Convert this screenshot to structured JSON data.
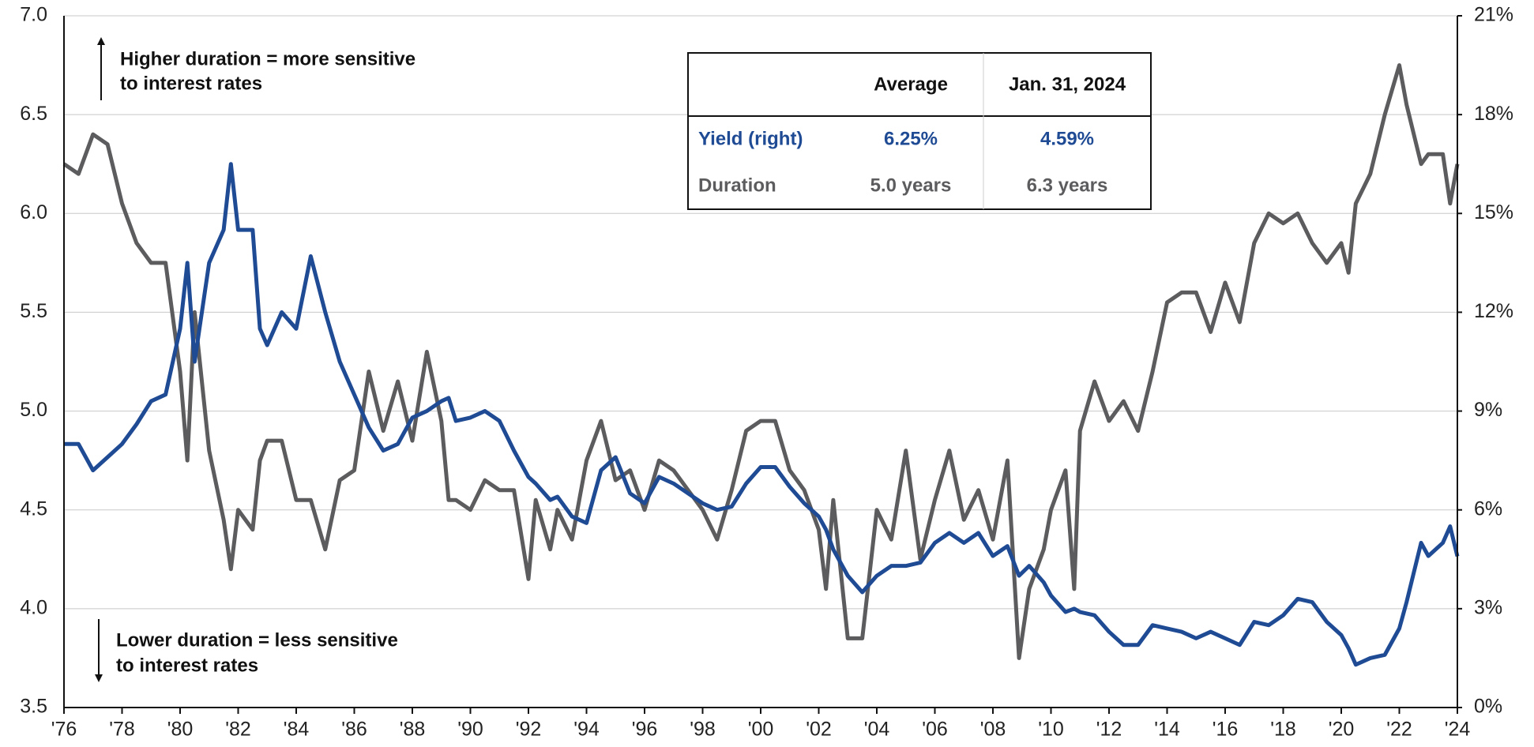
{
  "chart_data": {
    "type": "line",
    "x": [
      1976,
      1976.5,
      1977,
      1977.5,
      1978,
      1978.5,
      1979,
      1979.5,
      1980,
      1980.25,
      1980.5,
      1981,
      1981.5,
      1981.75,
      1982,
      1982.5,
      1982.75,
      1983,
      1983.5,
      1984,
      1984.5,
      1985,
      1985.5,
      1986,
      1986.5,
      1987,
      1987.5,
      1988,
      1988.5,
      1989,
      1989.25,
      1989.5,
      1990,
      1990.5,
      1991,
      1991.5,
      1992,
      1992.25,
      1992.75,
      1993,
      1993.5,
      1994,
      1994.5,
      1995,
      1995.5,
      1996,
      1996.5,
      1997,
      1997.5,
      1998,
      1998.5,
      1999,
      1999.5,
      2000,
      2000.5,
      2001,
      2001.5,
      2002,
      2002.25,
      2002.5,
      2003,
      2003.5,
      2004,
      2004.5,
      2005,
      2005.5,
      2006,
      2006.5,
      2007,
      2007.5,
      2008,
      2008.5,
      2008.9,
      2009.25,
      2009.75,
      2010,
      2010.5,
      2010.8,
      2011,
      2011.5,
      2012,
      2012.5,
      2013,
      2013.5,
      2014,
      2014.5,
      2015,
      2015.5,
      2016,
      2016.5,
      2017,
      2017.5,
      2018,
      2018.5,
      2019,
      2019.5,
      2020,
      2020.25,
      2020.5,
      2021,
      2021.5,
      2022,
      2022.25,
      2022.75,
      2023,
      2023.5,
      2023.75,
      2024
    ],
    "series": [
      {
        "name": "Yield (right)",
        "color": "#1f4a94",
        "axis": "y2",
        "values": [
          8.0,
          8.0,
          7.2,
          7.6,
          8.0,
          8.6,
          9.3,
          9.5,
          11.5,
          13.5,
          10.5,
          13.5,
          14.5,
          16.5,
          14.5,
          14.5,
          11.5,
          11.0,
          12.0,
          11.5,
          13.7,
          12.0,
          10.5,
          9.5,
          8.5,
          7.8,
          8.0,
          8.8,
          9.0,
          9.3,
          9.4,
          8.7,
          8.8,
          9.0,
          8.7,
          7.8,
          7.0,
          6.8,
          6.3,
          6.4,
          5.8,
          5.6,
          7.2,
          7.6,
          6.5,
          6.2,
          7.0,
          6.8,
          6.5,
          6.2,
          6.0,
          6.1,
          6.8,
          7.3,
          7.3,
          6.7,
          6.2,
          5.8,
          5.4,
          4.8,
          4.0,
          3.5,
          4.0,
          4.3,
          4.3,
          4.4,
          5.0,
          5.3,
          5.0,
          5.3,
          4.6,
          4.9,
          4.0,
          4.3,
          3.8,
          3.4,
          2.9,
          3.0,
          2.9,
          2.8,
          2.3,
          1.9,
          1.9,
          2.5,
          2.4,
          2.3,
          2.1,
          2.3,
          2.1,
          1.9,
          2.6,
          2.5,
          2.8,
          3.3,
          3.2,
          2.6,
          2.2,
          1.8,
          1.3,
          1.5,
          1.6,
          2.4,
          3.2,
          5.0,
          4.6,
          5.0,
          5.5,
          4.59
        ]
      },
      {
        "name": "Duration",
        "color": "#5c5c5e",
        "values": [
          6.25,
          6.2,
          6.4,
          6.35,
          6.05,
          5.85,
          5.75,
          5.75,
          5.2,
          4.75,
          5.5,
          4.8,
          4.45,
          4.2,
          4.5,
          4.4,
          4.75,
          4.85,
          4.85,
          4.55,
          4.55,
          4.3,
          4.65,
          4.7,
          5.2,
          4.9,
          5.15,
          4.85,
          5.3,
          4.95,
          4.55,
          4.55,
          4.5,
          4.65,
          4.6,
          4.6,
          4.15,
          4.55,
          4.3,
          4.5,
          4.35,
          4.75,
          4.95,
          4.65,
          4.7,
          4.5,
          4.75,
          4.7,
          4.6,
          4.5,
          4.35,
          4.6,
          4.9,
          4.95,
          4.95,
          4.7,
          4.6,
          4.4,
          4.1,
          4.55,
          3.85,
          3.85,
          4.5,
          4.35,
          4.8,
          4.25,
          4.55,
          4.8,
          4.45,
          4.6,
          4.35,
          4.75,
          3.75,
          4.1,
          4.3,
          4.5,
          4.7,
          4.1,
          4.9,
          5.15,
          4.95,
          5.05,
          4.9,
          5.2,
          5.55,
          5.6,
          5.6,
          5.4,
          5.65,
          5.45,
          5.85,
          6.0,
          5.95,
          6.0,
          5.85,
          5.75,
          5.85,
          5.7,
          6.05,
          6.2,
          6.5,
          6.75,
          6.55,
          6.25,
          6.3,
          6.3,
          6.05,
          6.25
        ]
      }
    ],
    "xlim": [
      1976,
      2024
    ],
    "xticks": [
      {
        "value": 1976,
        "label": "'76"
      },
      {
        "value": 1978,
        "label": "'78"
      },
      {
        "value": 1980,
        "label": "'80"
      },
      {
        "value": 1982,
        "label": "'82"
      },
      {
        "value": 1984,
        "label": "'84"
      },
      {
        "value": 1986,
        "label": "'86"
      },
      {
        "value": 1988,
        "label": "'88"
      },
      {
        "value": 1990,
        "label": "'90"
      },
      {
        "value": 1992,
        "label": "'92"
      },
      {
        "value": 1994,
        "label": "'94"
      },
      {
        "value": 1996,
        "label": "'96"
      },
      {
        "value": 1998,
        "label": "'98"
      },
      {
        "value": 2000,
        "label": "'00"
      },
      {
        "value": 2002,
        "label": "'02"
      },
      {
        "value": 2004,
        "label": "'04"
      },
      {
        "value": 2006,
        "label": "'06"
      },
      {
        "value": 2008,
        "label": "'08"
      },
      {
        "value": 2010,
        "label": "'10"
      },
      {
        "value": 2012,
        "label": "'12"
      },
      {
        "value": 2014,
        "label": "'14"
      },
      {
        "value": 2016,
        "label": "'16"
      },
      {
        "value": 2018,
        "label": "'18"
      },
      {
        "value": 2020,
        "label": "'20"
      },
      {
        "value": 2022,
        "label": "'22"
      },
      {
        "value": 2024,
        "label": "'24"
      }
    ],
    "ylim": [
      3.5,
      7.0
    ],
    "yticks": [
      3.5,
      {
        "value": 4,
        "label": "4.0"
      },
      4.5,
      {
        "value": 5,
        "label": "5.0"
      },
      5.5,
      {
        "value": 6,
        "label": "6.0"
      },
      6.5,
      {
        "value": 7,
        "label": "7.0"
      }
    ],
    "y2lim": [
      0,
      21
    ],
    "y2ticks": [
      {
        "value": 0,
        "label": "0%"
      },
      {
        "value": 3,
        "label": "3%"
      },
      {
        "value": 6,
        "label": "6%"
      },
      {
        "value": 9,
        "label": "9%"
      },
      {
        "value": 12,
        "label": "12%"
      },
      {
        "value": 15,
        "label": "15%"
      },
      {
        "value": 18,
        "label": "18%"
      },
      {
        "value": 21,
        "label": "21%"
      }
    ],
    "grid": true,
    "table": {
      "columns": [
        "Average",
        "Jan. 31, 2024"
      ],
      "rows": [
        [
          "6.25%",
          "4.59%"
        ],
        [
          "5.0 years",
          "6.3 years"
        ]
      ]
    },
    "annotations": [
      {
        "lines": [
          "Higher duration = more sensitive",
          "to interest rates"
        ]
      },
      {
        "lines": [
          "Lower duration = less sensitive",
          "to interest rates"
        ]
      }
    ]
  }
}
